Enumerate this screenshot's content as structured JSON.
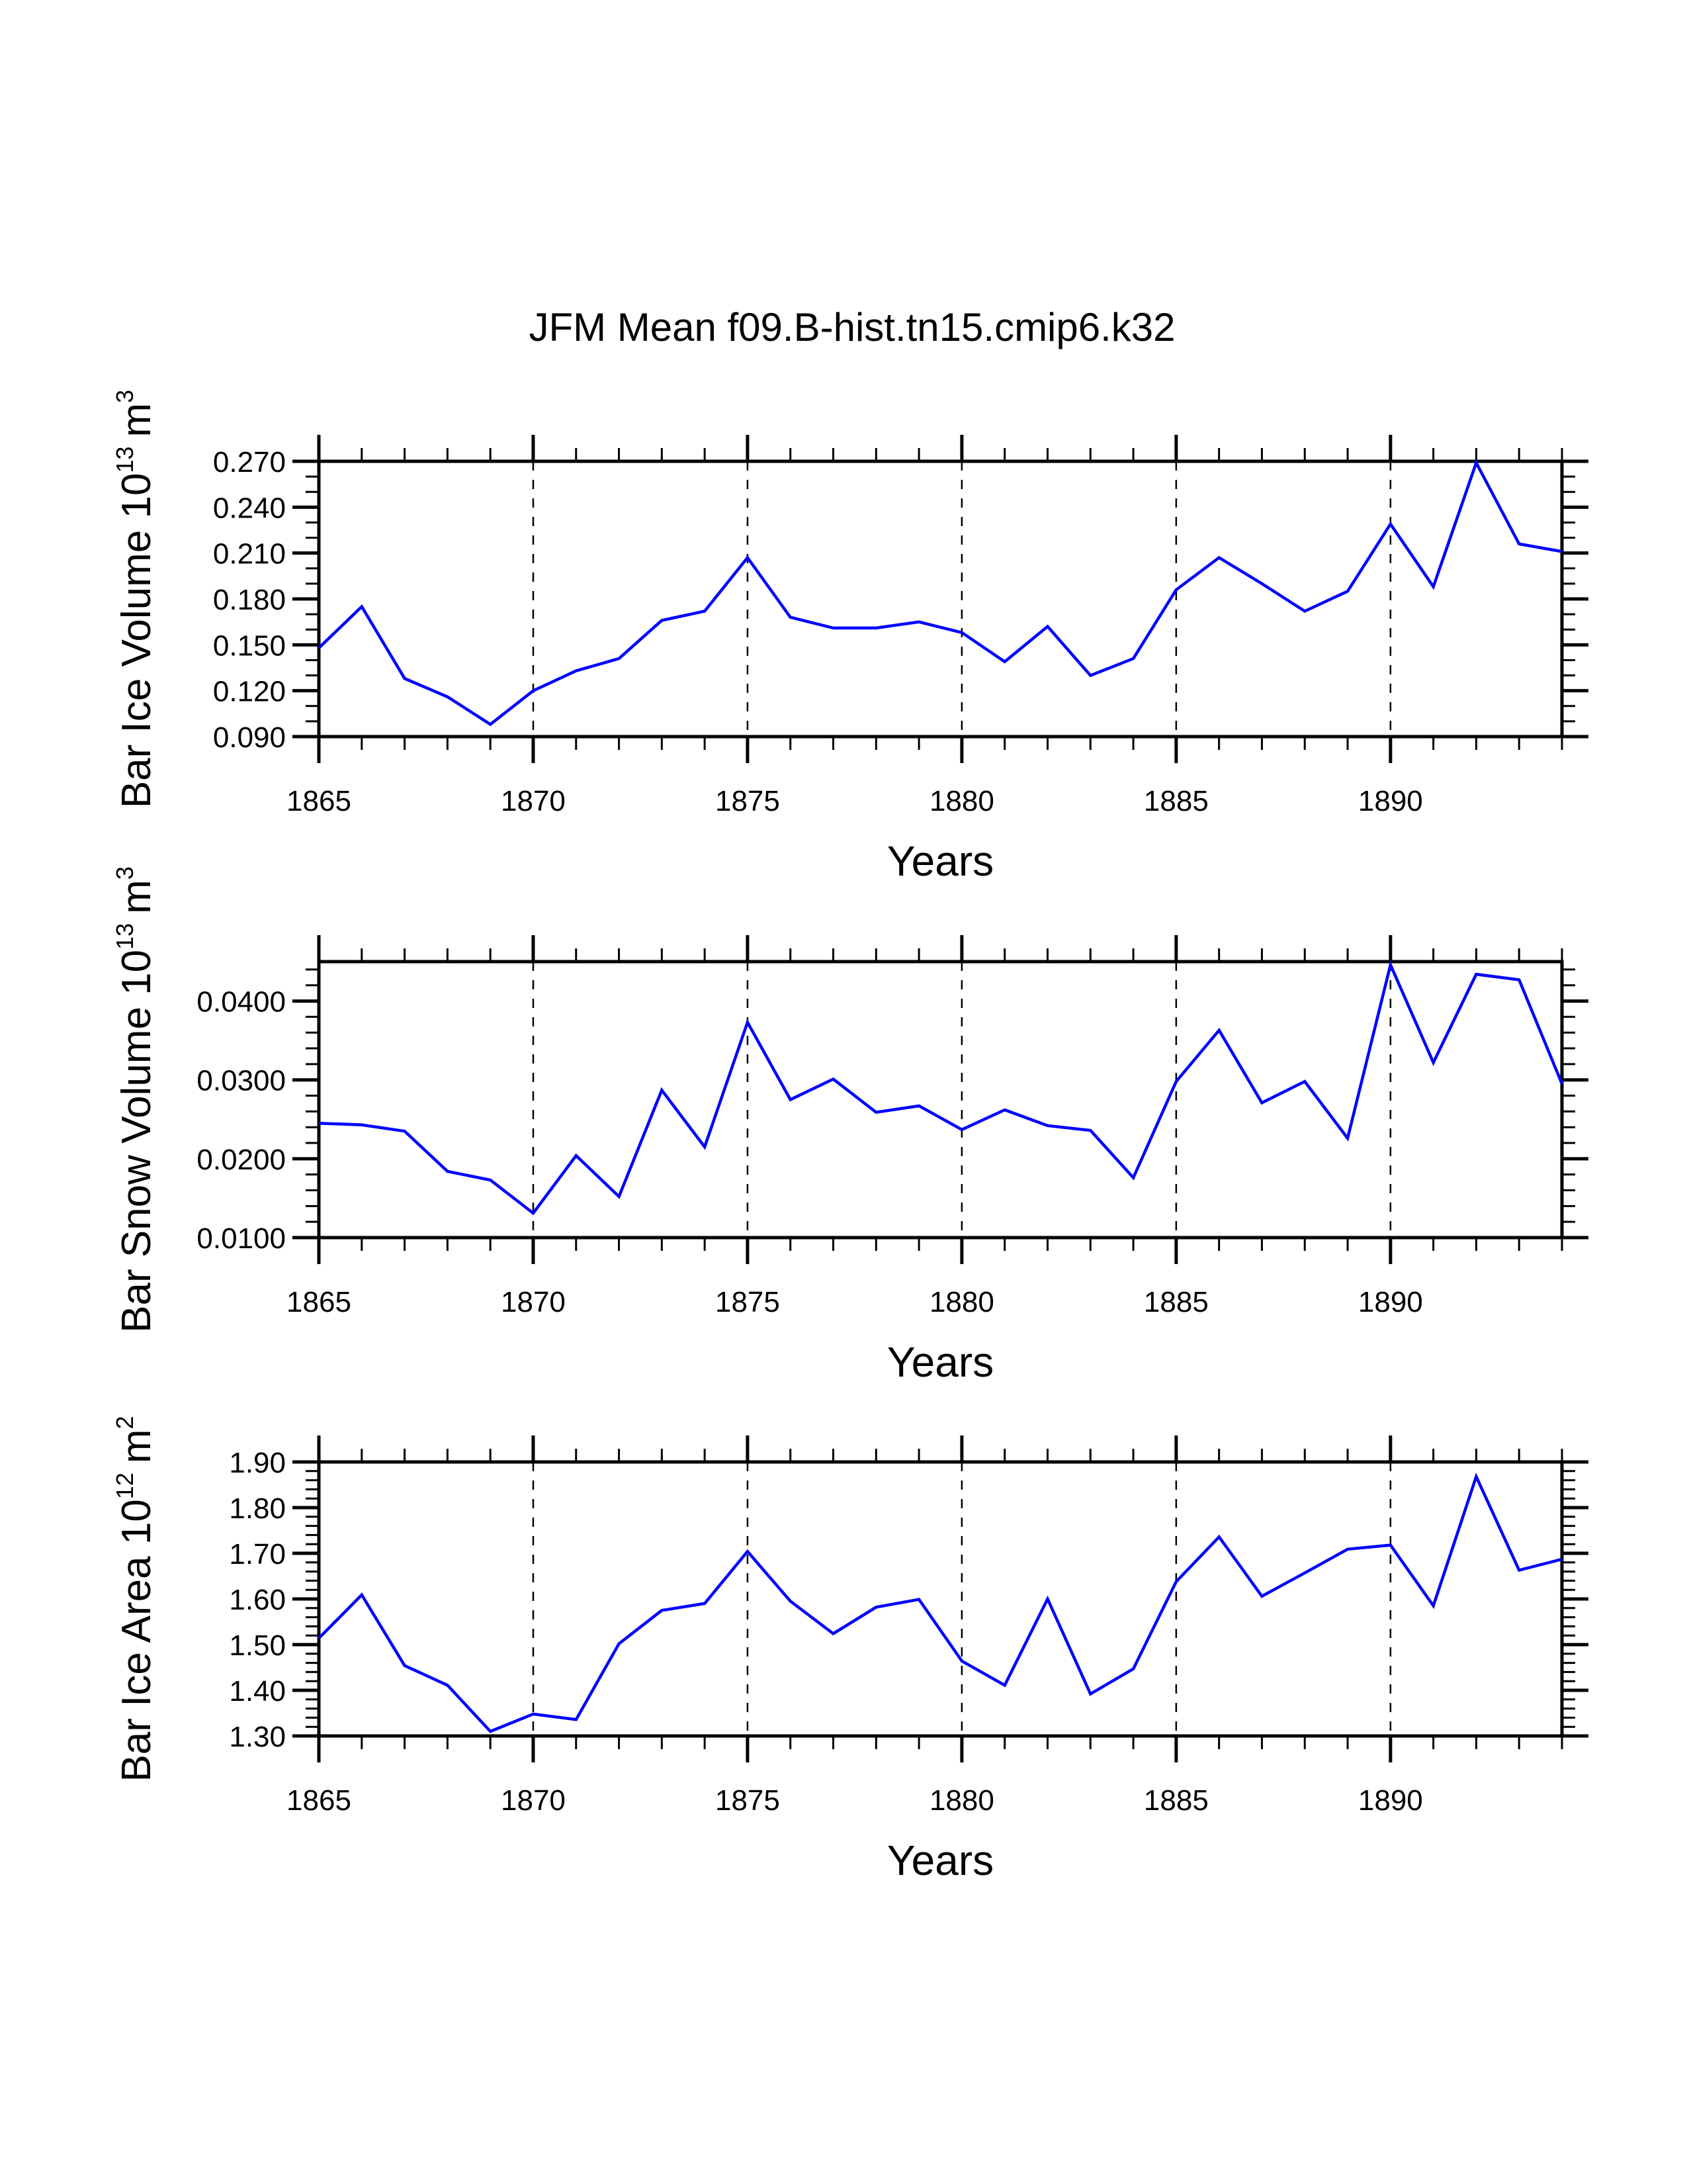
{
  "chart_data": {
    "type": "line",
    "title": "JFM Mean f09.B-hist.tn15.cmip6.k32",
    "line_color": "#0000ff",
    "grid": "dashed vertical lines at major x ticks",
    "x": [
      1865,
      1866,
      1867,
      1868,
      1869,
      1870,
      1871,
      1872,
      1873,
      1874,
      1875,
      1876,
      1877,
      1878,
      1879,
      1880,
      1881,
      1882,
      1883,
      1884,
      1885,
      1886,
      1887,
      1888,
      1889,
      1890,
      1891,
      1892,
      1893,
      1894
    ],
    "panels": [
      {
        "id": "ice-volume",
        "ylabel": "Bar Ice Volume 10",
        "ylabel_exponent": "13",
        "ylabel_unit": "m",
        "ylabel_unit_exponent": "3",
        "xlabel": "Years",
        "xlim": [
          1865,
          1894
        ],
        "ylim": [
          0.09,
          0.27
        ],
        "y_major_step": 0.03,
        "y_minor_step": 0.01,
        "y_tick_labels": [
          "0.090",
          "0.120",
          "0.150",
          "0.180",
          "0.210",
          "0.240",
          "0.270"
        ],
        "x_tick_labels": [
          "1865",
          "1870",
          "1875",
          "1880",
          "1885",
          "1890"
        ],
        "values": [
          0.148,
          0.175,
          0.128,
          0.116,
          0.098,
          0.12,
          0.133,
          0.141,
          0.166,
          0.172,
          0.207,
          0.168,
          0.161,
          0.161,
          0.165,
          0.158,
          0.139,
          0.162,
          0.13,
          0.141,
          0.186,
          0.207,
          0.19,
          0.172,
          0.185,
          0.229,
          0.188,
          0.269,
          0.216,
          0.211
        ]
      },
      {
        "id": "snow-volume",
        "ylabel": "Bar Snow Volume 10",
        "ylabel_exponent": "13",
        "ylabel_unit": "m",
        "ylabel_unit_exponent": "3",
        "xlabel": "Years",
        "xlim": [
          1865,
          1894
        ],
        "ylim": [
          0.01,
          0.045
        ],
        "y_major_step": 0.01,
        "y_minor_step": 0.002,
        "y_tick_labels": [
          "0.0100",
          "0.0200",
          "0.0300",
          "0.0400"
        ],
        "x_tick_labels": [
          "1865",
          "1870",
          "1875",
          "1880",
          "1885",
          "1890"
        ],
        "values": [
          0.0245,
          0.0243,
          0.0235,
          0.0184,
          0.0173,
          0.0131,
          0.0204,
          0.0152,
          0.0287,
          0.0215,
          0.0373,
          0.0275,
          0.0301,
          0.0259,
          0.0267,
          0.0237,
          0.0262,
          0.0242,
          0.0236,
          0.0176,
          0.0298,
          0.0363,
          0.0271,
          0.0298,
          0.0226,
          0.0446,
          0.0322,
          0.0434,
          0.0427,
          0.0295
        ]
      },
      {
        "id": "ice-area",
        "ylabel": "Bar Ice Area 10",
        "ylabel_exponent": "12",
        "ylabel_unit": "m",
        "ylabel_unit_exponent": "2",
        "xlabel": "Years",
        "xlim": [
          1865,
          1894
        ],
        "ylim": [
          1.3,
          1.9
        ],
        "y_major_step": 0.1,
        "y_minor_step": 0.02,
        "y_tick_labels": [
          "1.30",
          "1.40",
          "1.50",
          "1.60",
          "1.70",
          "1.80",
          "1.90"
        ],
        "x_tick_labels": [
          "1865",
          "1870",
          "1875",
          "1880",
          "1885",
          "1890"
        ],
        "values": [
          1.514,
          1.609,
          1.454,
          1.411,
          1.31,
          1.348,
          1.336,
          1.502,
          1.575,
          1.59,
          1.704,
          1.595,
          1.524,
          1.582,
          1.599,
          1.464,
          1.411,
          1.6,
          1.392,
          1.447,
          1.638,
          1.736,
          1.606,
          1.657,
          1.709,
          1.718,
          1.585,
          1.868,
          1.663,
          1.687
        ]
      }
    ]
  }
}
